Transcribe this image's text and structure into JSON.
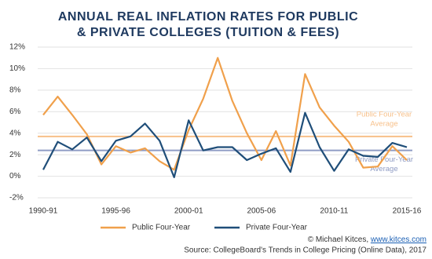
{
  "chart_data": {
    "type": "line",
    "title": [
      "ANNUAL REAL INFLATION RATES FOR PUBLIC",
      "& PRIVATE COLLEGES (TUITION & FEES)"
    ],
    "categories": [
      "1990-91",
      null,
      null,
      null,
      null,
      "1995-96",
      null,
      null,
      null,
      null,
      "2000-01",
      null,
      null,
      null,
      null,
      "2005-06",
      null,
      null,
      null,
      null,
      "2010-11",
      null,
      null,
      null,
      null,
      "2015-16"
    ],
    "series": [
      {
        "name": "Public Four-Year",
        "color": "#f0a04b",
        "values": [
          5.7,
          7.4,
          5.7,
          3.9,
          1.1,
          2.8,
          2.2,
          2.6,
          1.4,
          0.6,
          4.3,
          7.2,
          11.0,
          7.0,
          4.0,
          1.5,
          4.2,
          1.0,
          9.5,
          6.4,
          4.7,
          3.2,
          0.8,
          0.9,
          2.8,
          1.5
        ]
      },
      {
        "name": "Private Four-Year",
        "color": "#1f4e79",
        "values": [
          0.6,
          3.2,
          2.5,
          3.6,
          1.4,
          3.3,
          3.7,
          4.9,
          3.3,
          -0.1,
          5.2,
          2.4,
          2.7,
          2.7,
          1.5,
          2.1,
          2.6,
          0.4,
          5.9,
          2.7,
          0.5,
          2.5,
          1.9,
          1.8,
          3.1,
          2.7
        ]
      }
    ],
    "reference_lines": [
      {
        "label": [
          "Public Four-Year",
          "Average"
        ],
        "value": 3.7,
        "color": "#f7c08a"
      },
      {
        "label": [
          "Private Four-Year",
          "Average"
        ],
        "value": 2.4,
        "color": "#8f9cc4"
      }
    ],
    "ylim": [
      -2,
      12
    ],
    "yticks": [
      {
        "value": -2,
        "label": "-2%"
      },
      {
        "value": 0,
        "label": "0%"
      },
      {
        "value": 2,
        "label": "2%"
      },
      {
        "value": 4,
        "label": "4%"
      },
      {
        "value": 6,
        "label": "6%"
      },
      {
        "value": 8,
        "label": "8%"
      },
      {
        "value": 10,
        "label": "10%"
      },
      {
        "value": 12,
        "label": "12%"
      }
    ],
    "grid": true,
    "footer": {
      "credit": "© Michael Kitces, ",
      "link": "www.kitces.com",
      "source": "Source: CollegeBoard's Trends in College Pricing (Online Data), 2017"
    }
  }
}
